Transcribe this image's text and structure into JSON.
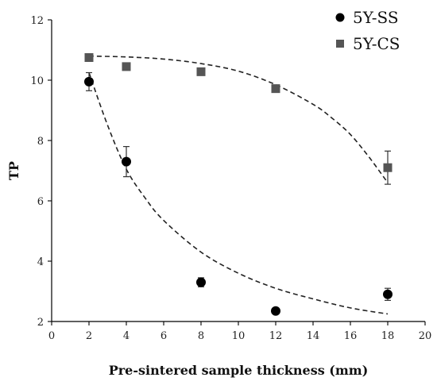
{
  "chart_data": {
    "type": "scatter",
    "title": "",
    "xlabel": "Pre-sintered sample thickness (mm)",
    "ylabel": "TP",
    "xlim": [
      0,
      20
    ],
    "ylim": [
      2,
      12
    ],
    "x_ticks": [
      0,
      2,
      4,
      6,
      8,
      10,
      12,
      14,
      16,
      18,
      20
    ],
    "y_ticks": [
      2,
      4,
      6,
      8,
      10,
      12
    ],
    "grid": false,
    "legend_position": "top-right",
    "series": [
      {
        "name": "5Y-SS",
        "marker": "circle",
        "color": "#000000",
        "x": [
          2,
          4,
          8,
          12,
          18
        ],
        "y": [
          9.95,
          7.3,
          3.3,
          2.35,
          2.9
        ],
        "error": [
          0.3,
          0.5,
          0.15,
          0.05,
          0.2
        ]
      },
      {
        "name": "5Y-CS",
        "marker": "square",
        "color": "#555555",
        "x": [
          2,
          4,
          8,
          12,
          18
        ],
        "y": [
          10.75,
          10.45,
          10.28,
          9.72,
          7.1
        ],
        "error": [
          0.05,
          0.05,
          0.05,
          0.05,
          0.55
        ]
      }
    ],
    "fits": [
      {
        "series": "5Y-SS",
        "style": "dashed",
        "points": [
          [
            2,
            10.25
          ],
          [
            3,
            8.5
          ],
          [
            4,
            7.05
          ],
          [
            5,
            6.1
          ],
          [
            6,
            5.35
          ],
          [
            8,
            4.3
          ],
          [
            10,
            3.6
          ],
          [
            12,
            3.1
          ],
          [
            14,
            2.75
          ],
          [
            16,
            2.45
          ],
          [
            18,
            2.25
          ]
        ]
      },
      {
        "series": "5Y-CS",
        "style": "dashed",
        "points": [
          [
            2,
            10.8
          ],
          [
            4,
            10.77
          ],
          [
            6,
            10.7
          ],
          [
            8,
            10.55
          ],
          [
            10,
            10.3
          ],
          [
            12,
            9.85
          ],
          [
            14,
            9.2
          ],
          [
            15,
            8.75
          ],
          [
            16,
            8.2
          ],
          [
            17,
            7.45
          ],
          [
            18,
            6.6
          ]
        ]
      }
    ]
  }
}
